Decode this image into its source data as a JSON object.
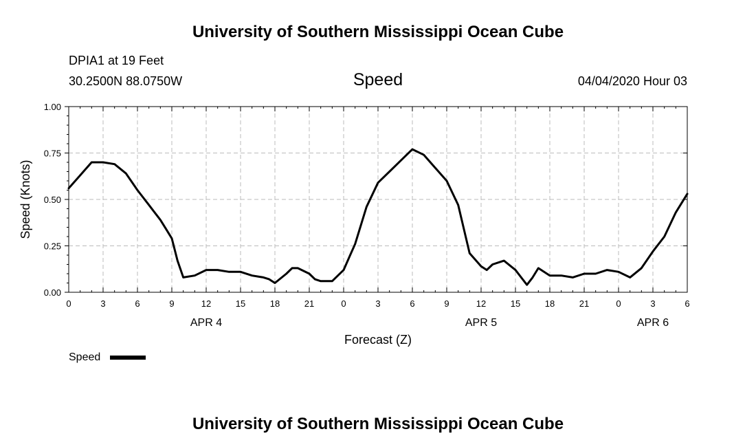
{
  "header": {
    "title_top": "University of Southern Mississippi Ocean Cube",
    "station": "DPIA1 at 19 Feet",
    "coords": "30.2500N 88.0750W",
    "datetime": "04/04/2020 Hour 03"
  },
  "footer": {
    "title_bottom": "University of Southern Mississippi Ocean Cube"
  },
  "legend": {
    "label": "Speed",
    "color": "#000000"
  },
  "chart_data": {
    "type": "line",
    "title": "Speed",
    "xlabel": "Forecast (Z)",
    "ylabel": "Speed (Knots)",
    "xlim": [
      0,
      54
    ],
    "ylim": [
      0,
      1.0
    ],
    "grid": true,
    "x_tick_hours": [
      0,
      3,
      6,
      9,
      12,
      15,
      18,
      21,
      24,
      27,
      30,
      33,
      36,
      39,
      42,
      45,
      48,
      51,
      54
    ],
    "x_tick_labels": [
      "0",
      "3",
      "6",
      "9",
      "12",
      "15",
      "18",
      "21",
      "0",
      "3",
      "6",
      "9",
      "12",
      "15",
      "18",
      "21",
      "0",
      "3",
      "6"
    ],
    "y_ticks": [
      0,
      0.25,
      0.5,
      0.75,
      1.0
    ],
    "y_tick_labels": [
      "0.00",
      "0.25",
      "0.50",
      "0.75",
      "1.00"
    ],
    "day_labels": [
      {
        "hour": 12,
        "label": "APR 4"
      },
      {
        "hour": 36,
        "label": "APR 5"
      },
      {
        "hour": 51,
        "label": "APR 6"
      }
    ],
    "series": [
      {
        "name": "Speed",
        "color": "#000000",
        "x": [
          0,
          1,
          2,
          3,
          4,
          5,
          6,
          7,
          7.5,
          8,
          8.5,
          9,
          9.5,
          10,
          11,
          12,
          13,
          14,
          15,
          16,
          17,
          17.5,
          18,
          19,
          19.5,
          20,
          21,
          21.5,
          22,
          23,
          24,
          24.5,
          25,
          26,
          27,
          28,
          29,
          30,
          31,
          32,
          33,
          34,
          35,
          36,
          36.5,
          37,
          38,
          39,
          40,
          40.5,
          41,
          42,
          43,
          44,
          45,
          46,
          47,
          48,
          49,
          50,
          51,
          52,
          53,
          54
        ],
        "y": [
          0.56,
          0.63,
          0.7,
          0.7,
          0.69,
          0.64,
          0.55,
          0.47,
          0.43,
          0.39,
          0.34,
          0.29,
          0.17,
          0.08,
          0.09,
          0.12,
          0.12,
          0.11,
          0.11,
          0.09,
          0.08,
          0.07,
          0.05,
          0.1,
          0.13,
          0.13,
          0.1,
          0.07,
          0.06,
          0.06,
          0.12,
          0.19,
          0.26,
          0.46,
          0.59,
          0.65,
          0.71,
          0.77,
          0.74,
          0.67,
          0.6,
          0.47,
          0.21,
          0.14,
          0.12,
          0.15,
          0.17,
          0.12,
          0.04,
          0.08,
          0.13,
          0.09,
          0.09,
          0.08,
          0.1,
          0.1,
          0.12,
          0.11,
          0.08,
          0.13,
          0.22,
          0.3,
          0.43,
          0.53
        ]
      }
    ]
  }
}
